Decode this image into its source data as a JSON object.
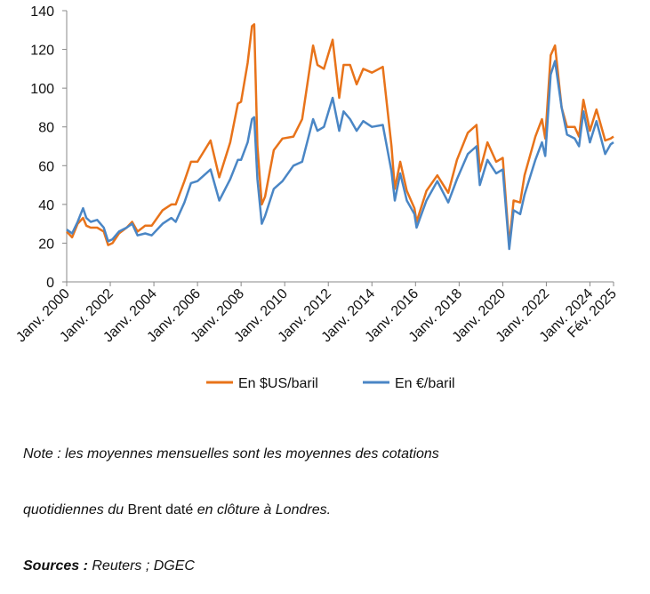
{
  "chart_data": {
    "type": "line",
    "xlim": [
      2000,
      2025.083
    ],
    "ylim": [
      0,
      140
    ],
    "yticks": [
      0,
      20,
      40,
      60,
      80,
      100,
      120,
      140
    ],
    "xticks": [
      {
        "value": 2000,
        "label": "Janv. 2000"
      },
      {
        "value": 2002,
        "label": "Janv. 2002"
      },
      {
        "value": 2004,
        "label": "Janv. 2004"
      },
      {
        "value": 2006,
        "label": "Janv. 2006"
      },
      {
        "value": 2008,
        "label": "Janv. 2008"
      },
      {
        "value": 2010,
        "label": "Janv. 2010"
      },
      {
        "value": 2012,
        "label": "Janv. 2012"
      },
      {
        "value": 2014,
        "label": "Janv. 2014"
      },
      {
        "value": 2016,
        "label": "Janv. 2016"
      },
      {
        "value": 2018,
        "label": "Janv. 2018"
      },
      {
        "value": 2020,
        "label": "Janv. 2020"
      },
      {
        "value": 2022,
        "label": "Janv. 2022"
      },
      {
        "value": 2024,
        "label": "Janv. 2024"
      },
      {
        "value": 2025.083,
        "label": "Fév. 2025"
      }
    ],
    "grid": false,
    "legend": "bottom",
    "x": [
      2000.0,
      2000.25,
      2000.5,
      2000.75,
      2000.9,
      2001.1,
      2001.4,
      2001.7,
      2001.9,
      2002.1,
      2002.4,
      2002.75,
      2003.0,
      2003.25,
      2003.6,
      2003.9,
      2004.4,
      2004.8,
      2005.0,
      2005.4,
      2005.7,
      2006.0,
      2006.6,
      2007.0,
      2007.5,
      2007.85,
      2008.0,
      2008.3,
      2008.5,
      2008.6,
      2008.75,
      2008.95,
      2009.1,
      2009.5,
      2009.9,
      2010.4,
      2010.8,
      2011.3,
      2011.5,
      2011.8,
      2012.2,
      2012.5,
      2012.7,
      2013.0,
      2013.3,
      2013.6,
      2014.0,
      2014.5,
      2014.9,
      2015.05,
      2015.3,
      2015.6,
      2015.95,
      2016.05,
      2016.5,
      2017.0,
      2017.5,
      2017.9,
      2018.4,
      2018.8,
      2018.95,
      2019.3,
      2019.7,
      2020.0,
      2020.3,
      2020.5,
      2020.8,
      2021.0,
      2021.5,
      2021.8,
      2021.95,
      2022.2,
      2022.4,
      2022.7,
      2022.95,
      2023.3,
      2023.5,
      2023.7,
      2024.0,
      2024.3,
      2024.7,
      2024.95,
      2025.083
    ],
    "series": [
      {
        "name": "En $US/baril",
        "color": "#e8731a",
        "values": [
          26,
          23,
          30,
          33,
          29,
          28,
          28,
          26,
          19,
          20,
          25,
          28,
          31,
          26,
          29,
          29,
          37,
          40,
          40,
          52,
          62,
          62,
          73,
          54,
          72,
          92,
          93,
          113,
          132,
          133,
          70,
          40,
          44,
          68,
          74,
          75,
          84,
          122,
          112,
          110,
          125,
          95,
          112,
          112,
          102,
          110,
          108,
          111,
          70,
          48,
          62,
          47,
          38,
          31,
          47,
          55,
          46,
          63,
          77,
          81,
          57,
          72,
          62,
          64,
          19,
          42,
          41,
          55,
          75,
          84,
          74,
          117,
          122,
          90,
          80,
          80,
          75,
          94,
          78,
          89,
          73,
          74,
          75
        ]
      },
      {
        "name": "En €/baril",
        "color": "#4a86c5",
        "values": [
          27,
          25,
          31,
          38,
          33,
          31,
          32,
          28,
          21,
          22,
          26,
          28,
          30,
          24,
          25,
          24,
          30,
          33,
          31,
          41,
          51,
          52,
          58,
          42,
          53,
          63,
          63,
          72,
          84,
          85,
          53,
          30,
          34,
          48,
          52,
          60,
          62,
          84,
          78,
          80,
          95,
          78,
          88,
          84,
          78,
          83,
          80,
          81,
          57,
          42,
          56,
          42,
          35,
          28,
          42,
          52,
          41,
          53,
          66,
          70,
          50,
          63,
          56,
          58,
          17,
          37,
          35,
          45,
          63,
          72,
          65,
          107,
          114,
          90,
          76,
          74,
          70,
          88,
          72,
          83,
          66,
          71,
          72
        ]
      }
    ],
    "note_lines": [
      [
        "Note : les moyennes mensuelles sont les moyennes des cotations"
      ],
      [
        "quotidiennes du ",
        "Brent daté",
        " en clôture à Londres."
      ]
    ],
    "sources": [
      "Sources :",
      " Reuters ; DGEC"
    ]
  }
}
